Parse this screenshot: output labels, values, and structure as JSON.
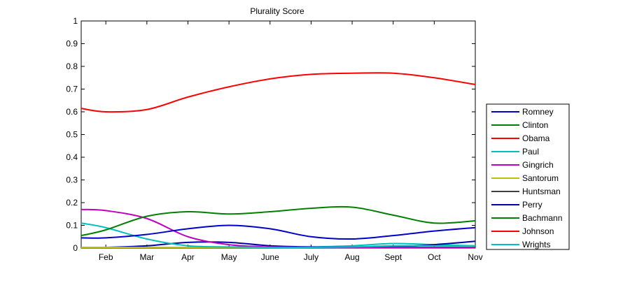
{
  "chart_data": {
    "type": "line",
    "title": "Plurality Score",
    "xlabel": "",
    "ylabel": "",
    "x_ticks": [
      "Feb",
      "Mar",
      "Apr",
      "May",
      "June",
      "July",
      "Aug",
      "Sept",
      "Oct",
      "Nov"
    ],
    "x_positions": [
      1.0,
      2.0,
      3.0,
      4.0,
      5.0,
      6.0,
      7.0,
      8.0,
      9.0,
      10.0
    ],
    "xlim": [
      0.4,
      10.0
    ],
    "y_ticks": [
      "0",
      "0.1",
      "0.2",
      "0.3",
      "0.4",
      "0.5",
      "0.6",
      "0.7",
      "0.8",
      "0.9",
      "1"
    ],
    "ylim": [
      0,
      1
    ],
    "grid": false,
    "legend_position": "right",
    "series": [
      {
        "name": "Romney",
        "color": "#0000cc",
        "x": [
          0.4,
          1.0,
          2.0,
          3.0,
          4.0,
          5.0,
          6.0,
          7.0,
          8.0,
          9.0,
          10.0
        ],
        "y": [
          0.045,
          0.045,
          0.06,
          0.085,
          0.1,
          0.085,
          0.05,
          0.04,
          0.055,
          0.075,
          0.09
        ]
      },
      {
        "name": "Clinton",
        "color": "#008000",
        "x": [
          0.4,
          1.0,
          2.0,
          3.0,
          4.0,
          5.0,
          6.0,
          7.0,
          8.0,
          9.0,
          10.0
        ],
        "y": [
          0.055,
          0.08,
          0.14,
          0.16,
          0.15,
          0.16,
          0.175,
          0.18,
          0.145,
          0.11,
          0.12
        ]
      },
      {
        "name": "Obama",
        "color": "#ff0000",
        "x": [
          0.4,
          1.0,
          2.0,
          3.0,
          4.0,
          5.0,
          6.0,
          7.0,
          8.0,
          9.0,
          10.0
        ],
        "y": [
          0.615,
          0.6,
          0.61,
          0.665,
          0.71,
          0.745,
          0.765,
          0.77,
          0.77,
          0.75,
          0.72
        ]
      },
      {
        "name": "Paul",
        "color": "#00bfbf",
        "x": [
          0.4,
          1.0,
          2.0,
          3.0,
          4.0,
          5.0,
          6.0,
          7.0,
          8.0,
          9.0,
          10.0
        ],
        "y": [
          0.11,
          0.09,
          0.04,
          0.01,
          0.005,
          0.0,
          0.0,
          0.005,
          0.01,
          0.01,
          0.01
        ]
      },
      {
        "name": "Gingrich",
        "color": "#bf00bf",
        "x": [
          0.4,
          1.0,
          2.0,
          3.0,
          4.0,
          5.0,
          6.0,
          7.0,
          8.0,
          9.0,
          10.0
        ],
        "y": [
          0.17,
          0.165,
          0.13,
          0.05,
          0.015,
          0.005,
          0.0,
          0.0,
          0.0,
          0.0,
          0.0
        ]
      },
      {
        "name": "Santorum",
        "color": "#bfbf00",
        "x": [
          0.4,
          1.0,
          2.0,
          3.0,
          4.0,
          5.0,
          6.0,
          7.0,
          8.0,
          9.0,
          10.0
        ],
        "y": [
          0.0,
          0.0,
          0.0,
          0.0,
          0.0,
          0.0,
          0.0,
          0.0,
          0.0,
          0.0,
          0.0
        ]
      },
      {
        "name": "Huntsman",
        "color": "#404040",
        "x": [
          0.4,
          1.0,
          2.0,
          3.0,
          4.0,
          5.0,
          6.0,
          7.0,
          8.0,
          9.0,
          10.0
        ],
        "y": [
          0.0,
          0.0,
          0.0,
          0.0,
          0.0,
          0.0,
          0.0,
          0.0,
          0.0,
          0.0,
          0.0
        ]
      },
      {
        "name": "Perry",
        "color": "#0000aa",
        "x": [
          0.4,
          1.0,
          2.0,
          3.0,
          4.0,
          5.0,
          6.0,
          7.0,
          8.0,
          9.0,
          10.0
        ],
        "y": [
          0.0,
          0.0,
          0.01,
          0.025,
          0.025,
          0.01,
          0.005,
          0.005,
          0.005,
          0.015,
          0.03
        ]
      },
      {
        "name": "Bachmann",
        "color": "#008000",
        "x": [
          0.4,
          1.0,
          2.0,
          3.0,
          4.0,
          5.0,
          6.0,
          7.0,
          8.0,
          9.0,
          10.0
        ],
        "y": [
          0.0,
          0.0,
          0.0,
          0.0,
          0.0,
          0.0,
          0.0,
          0.0,
          0.0,
          0.0,
          0.0
        ]
      },
      {
        "name": "Johnson",
        "color": "#ff0000",
        "x": [
          0.4,
          1.0,
          2.0,
          3.0,
          4.0,
          5.0,
          6.0,
          7.0,
          8.0,
          9.0,
          10.0
        ],
        "y": [
          0.0,
          0.0,
          0.0,
          0.0,
          0.0,
          0.0,
          0.0,
          0.0,
          0.0,
          0.0,
          0.0
        ]
      },
      {
        "name": "Wrights",
        "color": "#00bfbf",
        "x": [
          0.4,
          1.0,
          2.0,
          3.0,
          4.0,
          5.0,
          6.0,
          7.0,
          8.0,
          9.0,
          10.0
        ],
        "y": [
          0.0,
          0.0,
          0.0,
          0.0,
          0.0,
          0.0,
          0.005,
          0.01,
          0.02,
          0.015,
          0.01
        ]
      }
    ]
  }
}
